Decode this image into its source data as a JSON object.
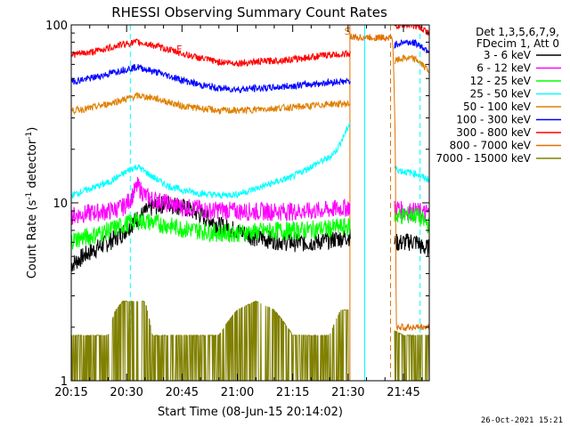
{
  "chart_data": {
    "type": "line",
    "title": "RHESSI Observing Summary Count Rates",
    "xlabel": "Start Time (08-Jun-15 20:14:02)",
    "ylabel_prefix": "Count Rate (s",
    "ylabel_sup": "-1",
    "ylabel_mid": " detector",
    "ylabel_sup2": "-1",
    "ylabel_suffix": ")",
    "y_scale": "log",
    "ylim": [
      1,
      100
    ],
    "xlim_minutes": [
      0,
      97
    ],
    "x_tick_labels": [
      "20:15",
      "20:30",
      "20:45",
      "21:00",
      "21:15",
      "21:30",
      "21:45"
    ],
    "y_tick_labels": [
      "1",
      "10",
      "100"
    ],
    "legend_header": [
      "Det 1,3,5,6,7,9,",
      "FDecim 1, Att 0"
    ],
    "legend_position": "right",
    "flag_markers": [
      {
        "text": "F",
        "color": "#ff0000"
      },
      {
        "text": "S",
        "color": "#e07000"
      }
    ],
    "series": [
      {
        "name": "3 - 6 keV",
        "color": "#000000",
        "x": [
          0,
          5,
          10,
          14,
          18,
          22,
          26,
          30,
          35,
          40,
          45,
          50,
          55,
          60,
          65,
          70,
          72,
          74,
          75.5,
          87,
          88,
          90,
          92,
          94,
          95,
          97
        ],
        "y": [
          4.5,
          5.3,
          6.0,
          6.8,
          8.2,
          9.5,
          10.0,
          9.5,
          8.6,
          7.5,
          7.0,
          6.4,
          6.2,
          6.0,
          6.0,
          6.2,
          6.3,
          6.4,
          6.5,
          6.0,
          6.0,
          6.0,
          6.1,
          6.0,
          5.6,
          5.6
        ]
      },
      {
        "name": "6 - 12 keV",
        "color": "#ff00ff",
        "x": [
          0,
          5,
          10,
          14,
          16,
          18,
          20,
          22,
          26,
          30,
          35,
          38,
          40,
          45,
          50,
          55,
          60,
          65,
          70,
          72,
          75.5,
          87,
          88,
          90,
          92,
          94,
          95,
          97
        ],
        "y": [
          8.5,
          8.8,
          9.0,
          9.5,
          10.5,
          12.5,
          11.0,
          10.5,
          10.0,
          9.5,
          9.3,
          9.0,
          9.2,
          9.0,
          9.0,
          9.0,
          9.0,
          9.0,
          9.2,
          9.3,
          9.5,
          9.0,
          9.5,
          9.0,
          9.0,
          9.0,
          8.8,
          8.8
        ]
      },
      {
        "name": "12 - 25 keV",
        "color": "#00ff00",
        "x": [
          0,
          5,
          10,
          14,
          18,
          22,
          26,
          30,
          35,
          40,
          45,
          50,
          55,
          60,
          65,
          70,
          72,
          75.5,
          87,
          88,
          90,
          92,
          94,
          95,
          97
        ],
        "y": [
          6.2,
          6.5,
          7.0,
          7.5,
          8.0,
          7.8,
          7.5,
          7.2,
          7.0,
          6.8,
          6.8,
          6.9,
          7.0,
          7.0,
          7.1,
          7.2,
          7.3,
          7.4,
          8.0,
          8.5,
          8.5,
          8.6,
          8.5,
          8.0,
          7.5
        ]
      },
      {
        "name": "25 - 50 keV",
        "color": "#00ffff",
        "x": [
          0,
          5,
          10,
          14,
          16,
          18,
          20,
          22,
          26,
          30,
          35,
          40,
          45,
          50,
          55,
          60,
          65,
          70,
          72,
          74,
          75.5,
          87,
          88,
          90,
          92,
          94,
          95,
          97
        ],
        "y": [
          11.0,
          12.0,
          13.0,
          14.5,
          15.5,
          16.0,
          15.0,
          14.0,
          12.5,
          11.8,
          11.3,
          11.0,
          11.2,
          12.0,
          13.0,
          14.0,
          16.0,
          18.0,
          20.0,
          24.0,
          28.0,
          16.5,
          15.5,
          15.0,
          14.8,
          14.5,
          14.0,
          13.5
        ]
      },
      {
        "name": "50 - 100 keV",
        "color": "#e08000",
        "x": [
          0,
          5,
          10,
          14,
          18,
          22,
          26,
          30,
          35,
          40,
          45,
          50,
          55,
          60,
          65,
          70,
          72,
          75.5,
          87,
          88,
          90,
          92,
          94,
          95,
          97
        ],
        "y": [
          33.0,
          34.0,
          36.0,
          38.0,
          40.0,
          39.0,
          37.0,
          35.0,
          34.0,
          33.0,
          33.0,
          33.5,
          34.0,
          34.5,
          35.0,
          36.0,
          36.0,
          36.0,
          60.0,
          63.0,
          65.0,
          65.0,
          63.0,
          60.0,
          55.0
        ]
      },
      {
        "name": "100 - 300 keV",
        "color": "#0000ff",
        "x": [
          0,
          5,
          10,
          14,
          18,
          22,
          26,
          30,
          35,
          40,
          45,
          50,
          55,
          60,
          65,
          70,
          72,
          75.5,
          87,
          88,
          90,
          92,
          94,
          95,
          97
        ],
        "y": [
          48.0,
          50.0,
          53.0,
          56.0,
          58.0,
          55.0,
          52.0,
          49.0,
          46.0,
          44.0,
          43.5,
          44.0,
          44.5,
          45.5,
          46.5,
          47.5,
          48.0,
          48.0,
          75.0,
          78.0,
          80.0,
          80.0,
          78.0,
          75.0,
          72.0
        ]
      },
      {
        "name": "300 - 800 keV",
        "color": "#ff0000",
        "x": [
          0,
          5,
          10,
          14,
          18,
          22,
          26,
          30,
          35,
          40,
          45,
          50,
          55,
          60,
          65,
          70,
          72,
          75.5,
          87,
          88,
          90,
          92,
          94,
          95,
          97
        ],
        "y": [
          68.0,
          70.0,
          74.0,
          78.0,
          80.0,
          77.0,
          73.0,
          69.0,
          65.0,
          62.0,
          61.0,
          62.0,
          63.0,
          64.0,
          66.0,
          68.0,
          68.0,
          69.0,
          95.0,
          98.0,
          100.0,
          100.0,
          98.0,
          95.0,
          90.0
        ]
      },
      {
        "name": "800 - 7000 keV",
        "color": "#e07000",
        "x": [
          75.5,
          76,
          87,
          88,
          89,
          95,
          97
        ],
        "y": [
          85.0,
          85.0,
          85.0,
          2.0,
          2.0,
          2.0,
          2.0
        ]
      },
      {
        "name": "7000 - 15000 keV",
        "color": "#808000",
        "x": [
          0,
          10,
          12,
          14,
          20,
          22,
          25,
          30,
          40,
          45,
          50,
          55,
          60,
          65,
          70,
          73,
          75.5,
          90,
          95,
          97
        ],
        "y": [
          1.8,
          1.8,
          2.5,
          2.8,
          2.8,
          1.8,
          1.8,
          1.8,
          1.8,
          2.5,
          2.8,
          2.5,
          1.8,
          1.8,
          1.8,
          2.5,
          2.5,
          1.8,
          1.8,
          1.8
        ]
      }
    ],
    "stamp": "26-Oct-2021 15:21"
  }
}
